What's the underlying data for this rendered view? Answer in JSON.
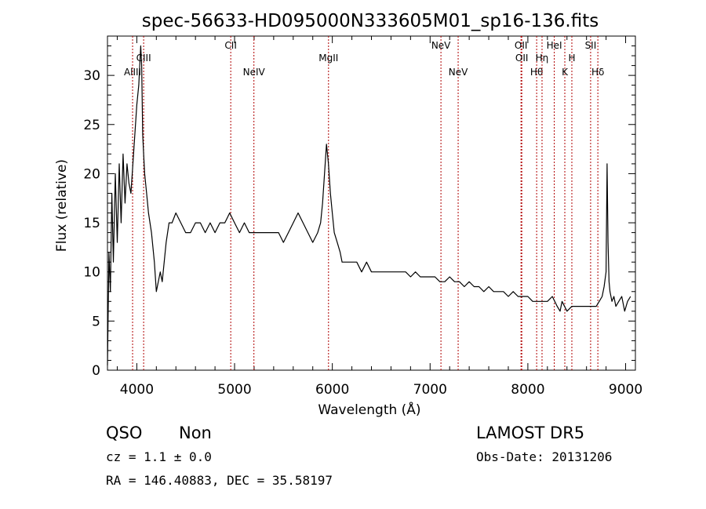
{
  "chart_data": {
    "type": "line",
    "title": "spec-56633-HD095000N333605M01_sp16-136.fits",
    "xlabel": "Wavelength (Å)",
    "ylabel": "Flux (relative)",
    "xlim": [
      3700,
      9100
    ],
    "ylim": [
      0,
      34
    ],
    "xticks": [
      4000,
      5000,
      6000,
      7000,
      8000,
      9000
    ],
    "yticks": [
      0,
      5,
      10,
      15,
      20,
      25,
      30
    ],
    "series": [
      {
        "color": "#000000",
        "x": [
          3700,
          3715,
          3730,
          3745,
          3760,
          3780,
          3800,
          3820,
          3840,
          3860,
          3880,
          3900,
          3920,
          3940,
          3960,
          3980,
          4000,
          4020,
          4040,
          4050,
          4060,
          4070,
          4080,
          4100,
          4120,
          4150,
          4180,
          4200,
          4220,
          4240,
          4260,
          4280,
          4300,
          4330,
          4360,
          4400,
          4450,
          4500,
          4550,
          4600,
          4650,
          4700,
          4750,
          4800,
          4850,
          4900,
          4950,
          5000,
          5050,
          5100,
          5150,
          5200,
          5250,
          5300,
          5350,
          5400,
          5450,
          5500,
          5550,
          5600,
          5650,
          5700,
          5750,
          5800,
          5850,
          5880,
          5900,
          5920,
          5940,
          5960,
          5980,
          6000,
          6020,
          6050,
          6080,
          6100,
          6150,
          6200,
          6250,
          6300,
          6350,
          6400,
          6450,
          6500,
          6550,
          6600,
          6650,
          6700,
          6750,
          6800,
          6850,
          6900,
          6950,
          7000,
          7050,
          7100,
          7150,
          7200,
          7250,
          7300,
          7350,
          7400,
          7450,
          7500,
          7550,
          7600,
          7650,
          7700,
          7750,
          7800,
          7850,
          7900,
          7950,
          8000,
          8050,
          8100,
          8150,
          8200,
          8250,
          8300,
          8330,
          8350,
          8400,
          8450,
          8500,
          8550,
          8600,
          8650,
          8700,
          8730,
          8760,
          8780,
          8800,
          8810,
          8820,
          8830,
          8840,
          8860,
          8880,
          8900,
          8930,
          8960,
          8990,
          9020,
          9050
        ],
        "y": [
          0.5,
          12,
          8,
          18,
          11,
          20,
          13,
          21,
          15,
          22,
          17,
          21,
          19,
          18,
          21,
          24,
          27,
          29,
          33,
          31,
          24,
          22,
          20,
          18,
          16,
          14,
          11,
          8,
          9,
          10,
          9,
          11,
          13,
          15,
          15,
          16,
          15,
          14,
          14,
          15,
          15,
          14,
          15,
          14,
          15,
          15,
          16,
          15,
          14,
          15,
          14,
          14,
          14,
          14,
          14,
          14,
          14,
          13,
          14,
          15,
          16,
          15,
          14,
          13,
          14,
          15,
          17,
          20,
          23,
          21,
          18,
          16,
          14,
          13,
          12,
          11,
          11,
          11,
          11,
          10,
          11,
          10,
          10,
          10,
          10,
          10,
          10,
          10,
          10,
          9.5,
          10,
          9.5,
          9.5,
          9.5,
          9.5,
          9,
          9,
          9.5,
          9,
          9,
          8.5,
          9,
          8.5,
          8.5,
          8,
          8.5,
          8,
          8,
          8,
          7.5,
          8,
          7.5,
          7.5,
          7.5,
          7,
          7,
          7,
          7,
          7.5,
          6.5,
          6,
          7,
          6,
          6.5,
          6.5,
          6.5,
          6.5,
          6.5,
          6.5,
          7,
          7.5,
          8.5,
          10,
          21,
          13,
          9,
          8,
          7,
          7.5,
          6.5,
          7,
          7.5,
          6,
          7,
          7.5
        ]
      }
    ],
    "lines": [
      {
        "name": "AlIII",
        "x": 3957,
        "row": 2
      },
      {
        "name": "CIII",
        "x": 4070,
        "row": 1
      },
      {
        "name": "CII",
        "x": 4961,
        "row": 0
      },
      {
        "name": "NeIV",
        "x": 5198,
        "row": 2
      },
      {
        "name": "MgII",
        "x": 5961,
        "row": 1
      },
      {
        "name": "NeV",
        "x": 7111,
        "row": 0
      },
      {
        "name": "NeV",
        "x": 7287,
        "row": 2
      },
      {
        "name": "OII",
        "x": 7930,
        "row": 0
      },
      {
        "name": "OII",
        "x": 7938,
        "row": 1
      },
      {
        "name": "Hθ",
        "x": 8090,
        "row": 2
      },
      {
        "name": "Hη",
        "x": 8145,
        "row": 1
      },
      {
        "name": "HeI",
        "x": 8270,
        "row": 0
      },
      {
        "name": "K",
        "x": 8378,
        "row": 2
      },
      {
        "name": "H",
        "x": 8450,
        "row": 1
      },
      {
        "name": "SII",
        "x": 8642,
        "row": 0
      },
      {
        "name": "Hδ",
        "x": 8716,
        "row": 2
      }
    ],
    "grid": false,
    "line_color": "#b00000"
  },
  "info": {
    "class": "QSO",
    "subclass": "Non",
    "cz": "cz = 1.1 ± 0.0",
    "radec": "RA = 146.40883, DEC =  35.58197",
    "survey": "LAMOST DR5",
    "obs_date": "Obs-Date: 20131206"
  }
}
